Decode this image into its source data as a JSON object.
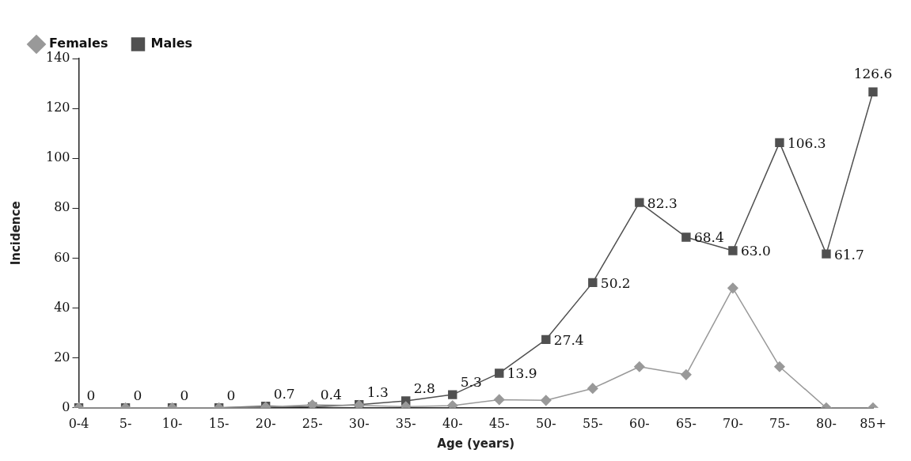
{
  "chart_data": {
    "type": "line",
    "xlabel": "Age (years)",
    "ylabel": "Incidence",
    "categories": [
      "0-4",
      "5-",
      "10-",
      "15-",
      "20-",
      "25-",
      "30-",
      "35-",
      "40-",
      "45-",
      "50-",
      "55-",
      "60-",
      "65-",
      "70-",
      "75-",
      "80-",
      "85+"
    ],
    "ylim": [
      0,
      140
    ],
    "yticks": [
      0,
      20,
      40,
      60,
      80,
      100,
      120,
      140
    ],
    "grid": false,
    "legend": "top left",
    "series": [
      {
        "name": "Males",
        "color": "#505050",
        "marker": "square",
        "values": [
          0,
          0,
          0,
          0,
          0.7,
          0.4,
          1.3,
          2.8,
          5.3,
          13.9,
          27.4,
          50.2,
          82.3,
          68.4,
          63.0,
          106.3,
          61.7,
          126.6
        ],
        "value_labels": [
          "0",
          "0",
          "0",
          "0",
          "0.7",
          "0.4",
          "1.3",
          "2.8",
          "5.3",
          "13.9",
          "27.4",
          "50.2",
          "82.3",
          "68.4",
          "63.0",
          "106.3",
          "61.7",
          "126.6"
        ]
      },
      {
        "name": "Females",
        "color": "#999999",
        "marker": "diamond",
        "values": [
          0,
          0,
          0,
          0,
          0.3,
          1.2,
          1.0,
          0.5,
          0.9,
          3.3,
          3.0,
          7.8,
          16.5,
          13.3,
          48,
          16.5,
          0,
          0
        ]
      }
    ]
  }
}
